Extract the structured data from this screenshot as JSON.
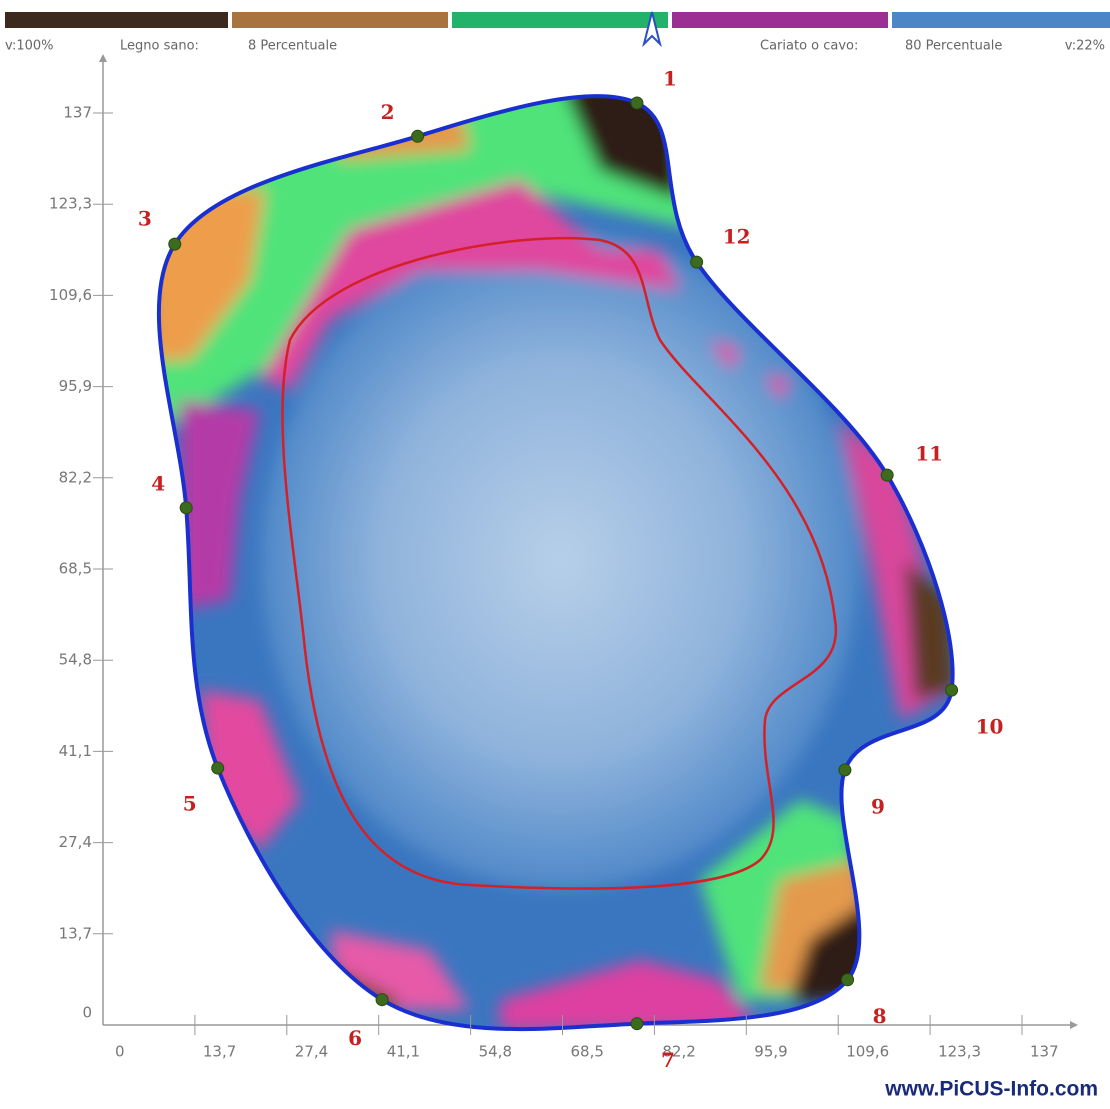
{
  "legend": {
    "left_value": "v:100%",
    "left_label": "Legno sano:",
    "left_percent": "8 Percentuale",
    "right_label": "Cariato o cavo:",
    "right_percent": "80 Percentuale",
    "right_value": "v:22%"
  },
  "axes": {
    "xlim": [
      0,
      137
    ],
    "ylim": [
      0,
      137
    ],
    "xticks": [
      0,
      {
        "value": 13.7,
        "label": "13,7"
      },
      {
        "value": 27.4,
        "label": "27,4"
      },
      {
        "value": 41.1,
        "label": "41,1"
      },
      {
        "value": 54.8,
        "label": "54,8"
      },
      {
        "value": 68.5,
        "label": "68,5"
      },
      {
        "value": 82.2,
        "label": "82,2"
      },
      {
        "value": 95.9,
        "label": "95,9"
      },
      {
        "value": 109.6,
        "label": "109,6"
      },
      {
        "value": 123.3,
        "label": "123,3"
      },
      137
    ],
    "yticks": [
      0,
      {
        "value": 13.7,
        "label": "13,7"
      },
      {
        "value": 27.4,
        "label": "27,4"
      },
      {
        "value": 41.1,
        "label": "41,1"
      },
      {
        "value": 54.8,
        "label": "54,8"
      },
      {
        "value": 68.5,
        "label": "68,5"
      },
      {
        "value": 82.2,
        "label": "82,2"
      },
      {
        "value": 95.9,
        "label": "95,9"
      },
      {
        "value": 109.6,
        "label": "109,6"
      },
      {
        "value": 123.3,
        "label": "123,3"
      },
      137
    ]
  },
  "sensors": [
    {
      "label": "1",
      "x": 79.6,
      "y": 138.5
    },
    {
      "label": "2",
      "x": 46.9,
      "y": 133.5
    },
    {
      "label": "3",
      "x": 10.7,
      "y": 117.3
    },
    {
      "label": "4",
      "x": 12.4,
      "y": 77.7
    },
    {
      "label": "5",
      "x": 17.1,
      "y": 38.6
    },
    {
      "label": "6",
      "x": 41.6,
      "y": 3.8
    },
    {
      "label": "7",
      "x": 79.6,
      "y": 0.2
    },
    {
      "label": "8",
      "x": 111.0,
      "y": 6.8
    },
    {
      "label": "9",
      "x": 110.6,
      "y": 38.3
    },
    {
      "label": "10",
      "x": 126.5,
      "y": 50.3
    },
    {
      "label": "11",
      "x": 116.9,
      "y": 82.6
    },
    {
      "label": "12",
      "x": 88.5,
      "y": 114.6
    }
  ],
  "watermark": "www.PiCUS-Info.com"
}
